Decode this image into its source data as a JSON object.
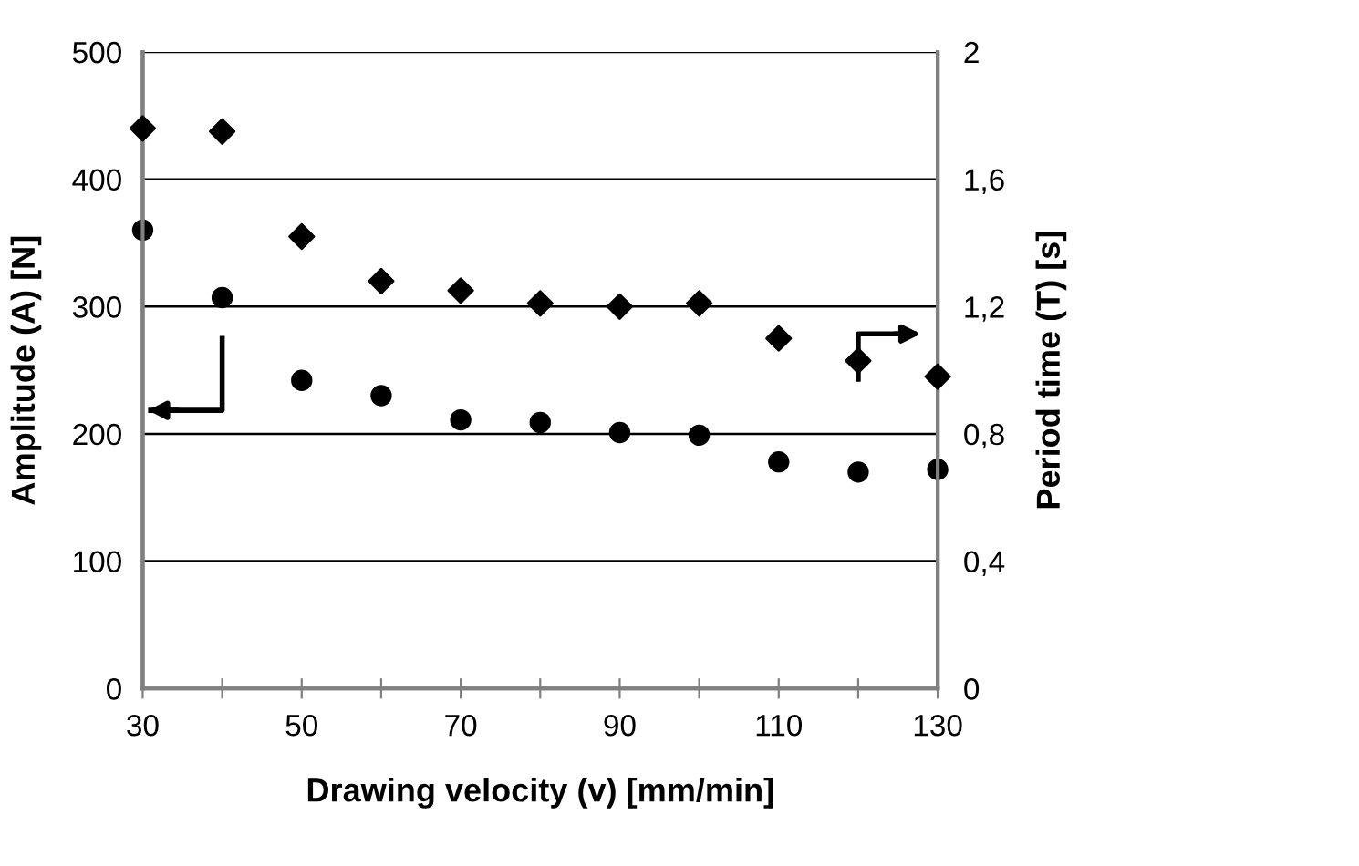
{
  "chart_data": {
    "type": "scatter",
    "xlabel": "Drawing velocity (v) [mm/min]",
    "ylabel": "Amplitude (A) [N]",
    "y2label": "Period time (T) [s]",
    "x": [
      30,
      40,
      50,
      60,
      70,
      80,
      90,
      100,
      110,
      120,
      130
    ],
    "series": [
      {
        "color": "#000000",
        "marker": "circle",
        "values": [
          360,
          307,
          242,
          230,
          211,
          209,
          201,
          199,
          178,
          170,
          172
        ]
      },
      {
        "color": "#000000",
        "marker": "diamond",
        "axis": "y2",
        "values": [
          1.76,
          1.75,
          1.42,
          1.28,
          1.25,
          1.21,
          1.2,
          1.21,
          1.1,
          1.03,
          0.98
        ]
      }
    ],
    "xlim": [
      30,
      130
    ],
    "xticks": [
      30,
      {
        "value": 40,
        "label": null
      },
      50,
      {
        "value": 60,
        "label": null
      },
      70,
      {
        "value": 80,
        "label": null
      },
      90,
      {
        "value": 100,
        "label": null
      },
      110,
      {
        "value": 120,
        "label": null
      },
      130
    ],
    "ylim": [
      0,
      500
    ],
    "yticks": [
      0,
      100,
      200,
      300,
      400,
      500
    ],
    "y2lim": [
      0,
      2
    ],
    "y2ticks": [
      0,
      {
        "value": 0.4,
        "label": "0,4"
      },
      {
        "value": 0.8,
        "label": "0,8"
      },
      {
        "value": 1.2,
        "label": "1,2"
      },
      {
        "value": 1.6,
        "label": "1,6"
      },
      2
    ],
    "grid": "y"
  }
}
